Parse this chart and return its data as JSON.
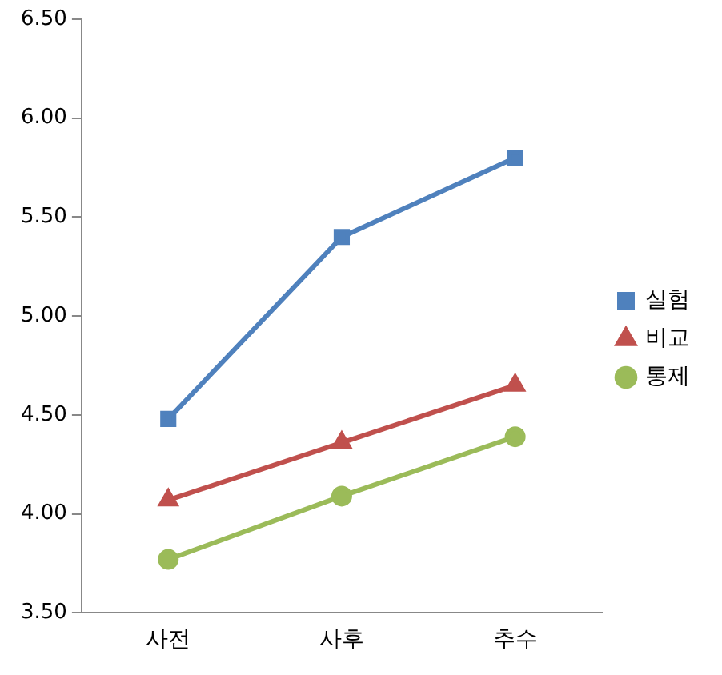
{
  "chart_data": {
    "type": "line",
    "categories": [
      "사전",
      "사후",
      "추수"
    ],
    "series": [
      {
        "name": "실험",
        "color": "#4f81bd",
        "marker": "square",
        "values": [
          4.48,
          5.4,
          5.8
        ]
      },
      {
        "name": "비교",
        "color": "#c0504d",
        "marker": "triangle",
        "values": [
          4.07,
          4.36,
          4.65
        ]
      },
      {
        "name": "통제",
        "color": "#9bbb59",
        "marker": "circle",
        "values": [
          3.77,
          4.09,
          4.39
        ]
      }
    ],
    "ylim": [
      3.5,
      6.5
    ],
    "yticks": [
      {
        "value": 3.5,
        "label": "3.50"
      },
      {
        "value": 4,
        "label": "4.00"
      },
      {
        "value": 4.5,
        "label": "4.50"
      },
      {
        "value": 5,
        "label": "5.00"
      },
      {
        "value": 5.5,
        "label": "5.50"
      },
      {
        "value": 6,
        "label": "6.00"
      },
      {
        "value": 6.5,
        "label": "6.50"
      }
    ],
    "grid": false,
    "legend": "right"
  }
}
